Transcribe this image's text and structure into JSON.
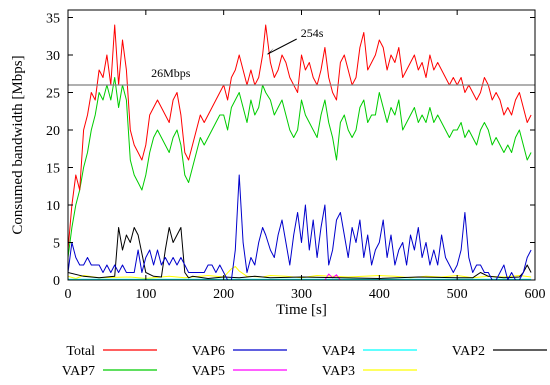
{
  "chart_data": {
    "type": "line",
    "xlabel": "Time [s]",
    "ylabel": "Consumed bandwidth [Mbps]",
    "xlim": [
      0,
      600
    ],
    "ylim": [
      0,
      36
    ],
    "xticks": [
      0,
      100,
      200,
      300,
      400,
      500,
      600
    ],
    "yticks": [
      0,
      5,
      10,
      15,
      20,
      25,
      30,
      35
    ],
    "grid": false,
    "legend_position": "bottom, outside plot",
    "reference_line": {
      "y": 26,
      "label": "26Mbps",
      "color": "#808080"
    },
    "annotations": [
      {
        "text": "254s",
        "x": 254,
        "y": 30
      }
    ],
    "series": [
      {
        "name": "Total",
        "color": "#ff0000",
        "x": [
          0,
          5,
          10,
          15,
          20,
          25,
          30,
          35,
          40,
          45,
          50,
          55,
          60,
          65,
          70,
          75,
          80,
          85,
          90,
          95,
          100,
          105,
          110,
          115,
          120,
          125,
          130,
          135,
          140,
          145,
          150,
          155,
          160,
          165,
          170,
          175,
          180,
          185,
          190,
          195,
          200,
          205,
          210,
          215,
          220,
          225,
          230,
          235,
          240,
          245,
          250,
          254,
          260,
          265,
          270,
          275,
          280,
          285,
          290,
          295,
          300,
          305,
          310,
          315,
          320,
          325,
          330,
          335,
          340,
          345,
          350,
          355,
          360,
          365,
          370,
          375,
          380,
          385,
          390,
          395,
          400,
          405,
          410,
          415,
          420,
          425,
          430,
          435,
          440,
          445,
          450,
          455,
          460,
          465,
          470,
          475,
          480,
          485,
          490,
          495,
          500,
          505,
          510,
          515,
          520,
          525,
          530,
          535,
          540,
          545,
          550,
          555,
          560,
          565,
          570,
          575,
          580,
          585,
          590,
          595
        ],
        "y": [
          4,
          10,
          14,
          12,
          20,
          22,
          25,
          24,
          28,
          27,
          30,
          26,
          34,
          26,
          32,
          28,
          20,
          18,
          17,
          16,
          18,
          22,
          23,
          24,
          23,
          22,
          21,
          24,
          25,
          22,
          17,
          16,
          18,
          20,
          22,
          21,
          22,
          23,
          24,
          25,
          26,
          24,
          27,
          28,
          30,
          28,
          26,
          28,
          26,
          27,
          30,
          34,
          29,
          27,
          28,
          30,
          29,
          27,
          26,
          25,
          30,
          28,
          29,
          27,
          26,
          28,
          31,
          27,
          25,
          24,
          29,
          30,
          28,
          26,
          27,
          31,
          33,
          28,
          29,
          30,
          32,
          31,
          28,
          30,
          29,
          31,
          27,
          28,
          29,
          30,
          28,
          29,
          27,
          30,
          28,
          29,
          28,
          27,
          26,
          27,
          26,
          27,
          25,
          26,
          25,
          24,
          25,
          27,
          26,
          24,
          25,
          24,
          22,
          23,
          22,
          24,
          25,
          23,
          21,
          22
        ]
      },
      {
        "name": "VAP7",
        "color": "#00cc00",
        "x": [
          0,
          5,
          10,
          15,
          20,
          25,
          30,
          35,
          40,
          45,
          50,
          55,
          60,
          65,
          70,
          75,
          80,
          85,
          90,
          95,
          100,
          105,
          110,
          115,
          120,
          125,
          130,
          135,
          140,
          145,
          150,
          155,
          160,
          165,
          170,
          175,
          180,
          185,
          190,
          195,
          200,
          205,
          210,
          215,
          220,
          225,
          230,
          235,
          240,
          245,
          250,
          254,
          260,
          265,
          270,
          275,
          280,
          285,
          290,
          295,
          300,
          305,
          310,
          315,
          320,
          325,
          330,
          335,
          340,
          345,
          350,
          355,
          360,
          365,
          370,
          375,
          380,
          385,
          390,
          395,
          400,
          405,
          410,
          415,
          420,
          425,
          430,
          435,
          440,
          445,
          450,
          455,
          460,
          465,
          470,
          475,
          480,
          485,
          490,
          495,
          500,
          505,
          510,
          515,
          520,
          525,
          530,
          535,
          540,
          545,
          550,
          555,
          560,
          565,
          570,
          575,
          580,
          585,
          590,
          595
        ],
        "y": [
          3,
          7,
          10,
          12,
          15,
          17,
          20,
          22,
          25,
          24,
          26,
          24,
          27,
          23,
          26,
          24,
          16,
          14,
          13,
          12,
          14,
          17,
          19,
          20,
          19,
          18,
          17,
          19,
          20,
          18,
          14,
          13,
          15,
          17,
          19,
          18,
          19,
          20,
          21,
          22,
          22,
          20,
          23,
          24,
          25,
          23,
          21,
          24,
          22,
          23,
          26,
          25,
          24,
          22,
          23,
          24,
          22,
          20,
          19,
          20,
          24,
          22,
          21,
          20,
          19,
          22,
          24,
          21,
          19,
          16,
          21,
          22,
          20,
          19,
          20,
          23,
          24,
          21,
          22,
          22,
          25,
          23,
          21,
          23,
          22,
          24,
          20,
          21,
          22,
          23,
          21,
          22,
          21,
          23,
          21,
          22,
          21,
          20,
          19,
          20,
          20,
          21,
          19,
          20,
          19,
          18,
          20,
          21,
          20,
          18,
          19,
          18,
          17,
          18,
          17,
          19,
          20,
          18,
          16,
          17
        ]
      },
      {
        "name": "VAP6",
        "color": "#0000cc",
        "x": [
          0,
          5,
          10,
          15,
          20,
          25,
          30,
          35,
          40,
          45,
          50,
          55,
          60,
          65,
          70,
          75,
          80,
          85,
          90,
          95,
          100,
          105,
          110,
          115,
          120,
          125,
          130,
          135,
          140,
          145,
          150,
          155,
          160,
          165,
          170,
          175,
          180,
          185,
          190,
          195,
          200,
          205,
          210,
          215,
          220,
          225,
          230,
          235,
          240,
          245,
          250,
          254,
          260,
          265,
          270,
          275,
          280,
          285,
          290,
          295,
          300,
          305,
          310,
          315,
          320,
          325,
          330,
          335,
          340,
          345,
          350,
          355,
          360,
          365,
          370,
          375,
          380,
          385,
          390,
          395,
          400,
          405,
          410,
          415,
          420,
          425,
          430,
          435,
          440,
          445,
          450,
          455,
          460,
          465,
          470,
          475,
          480,
          485,
          490,
          495,
          500,
          505,
          510,
          515,
          520,
          525,
          530,
          535,
          540,
          545,
          550,
          555,
          560,
          565,
          570,
          575,
          580,
          585,
          590,
          595
        ],
        "y": [
          1,
          5,
          3,
          2,
          2,
          3,
          2,
          2,
          2,
          1,
          2,
          1,
          2,
          1,
          2,
          1,
          1,
          1,
          4,
          1,
          3,
          4,
          2,
          4,
          2,
          3,
          2,
          3,
          2,
          3,
          2,
          1,
          1,
          1,
          1,
          1,
          2,
          2,
          1,
          2,
          1,
          0,
          0,
          4,
          14,
          5,
          1,
          3,
          2,
          5,
          7,
          6,
          4,
          3,
          6,
          8,
          5,
          2,
          6,
          9,
          5,
          10,
          4,
          8,
          3,
          7,
          10,
          2,
          4,
          8,
          9,
          6,
          3,
          7,
          5,
          8,
          3,
          6,
          2,
          4,
          5,
          8,
          3,
          6,
          2,
          4,
          5,
          2,
          6,
          4,
          7,
          3,
          5,
          2,
          4,
          2,
          6,
          3,
          2,
          1,
          2,
          4,
          9,
          3,
          1,
          2,
          2,
          1,
          1,
          0,
          0,
          1,
          2,
          0,
          1,
          0,
          0,
          1,
          3,
          4
        ]
      },
      {
        "name": "VAP5",
        "color": "#ff00ff",
        "x": [
          0,
          100,
          200,
          330,
          335,
          340,
          345,
          350,
          400,
          500,
          595
        ],
        "y": [
          0,
          0,
          0,
          0,
          0.8,
          0.3,
          0.7,
          0,
          0,
          0,
          0
        ]
      },
      {
        "name": "VAP4",
        "color": "#00ffff",
        "x": [
          0,
          100,
          200,
          300,
          400,
          500,
          595
        ],
        "y": [
          0.1,
          0.1,
          0.1,
          0.1,
          0.1,
          0.1,
          0.1
        ]
      },
      {
        "name": "VAP3",
        "color": "#ffff00",
        "x": [
          0,
          10,
          20,
          40,
          80,
          100,
          130,
          150,
          180,
          200,
          210,
          215,
          220,
          230,
          250,
          260,
          280,
          300,
          320,
          340,
          360,
          380,
          400,
          420,
          440,
          460,
          480,
          500,
          520,
          540,
          560,
          580,
          595
        ],
        "y": [
          0.5,
          0.2,
          0.6,
          0.3,
          0.4,
          0.2,
          0.5,
          0.3,
          0.6,
          0.4,
          1.5,
          1.8,
          1.2,
          0.5,
          0.4,
          0.6,
          0.5,
          0.3,
          0.6,
          0.5,
          0.4,
          0.5,
          0.6,
          0.5,
          0.3,
          0.5,
          0.4,
          0.6,
          0.3,
          0.5,
          0.4,
          0.6,
          0.4
        ]
      },
      {
        "name": "VAP2",
        "color": "#000000",
        "x": [
          0,
          20,
          40,
          60,
          65,
          70,
          75,
          80,
          85,
          90,
          100,
          110,
          120,
          125,
          130,
          135,
          140,
          145,
          150,
          155,
          160,
          180,
          200,
          220,
          240,
          260,
          300,
          350,
          400,
          450,
          500,
          520,
          530,
          540,
          560,
          580,
          585,
          590,
          595
        ],
        "y": [
          1,
          0.5,
          0.3,
          0.5,
          7,
          4,
          6,
          5,
          7,
          6,
          1,
          0.5,
          0.4,
          4,
          7,
          5,
          6,
          7,
          1,
          0.3,
          0.5,
          0.2,
          0.4,
          0.3,
          0.5,
          0.3,
          0.4,
          0.3,
          0.2,
          0.4,
          0.3,
          0.3,
          1,
          0.5,
          0.3,
          0.4,
          1,
          2,
          1
        ]
      }
    ]
  }
}
